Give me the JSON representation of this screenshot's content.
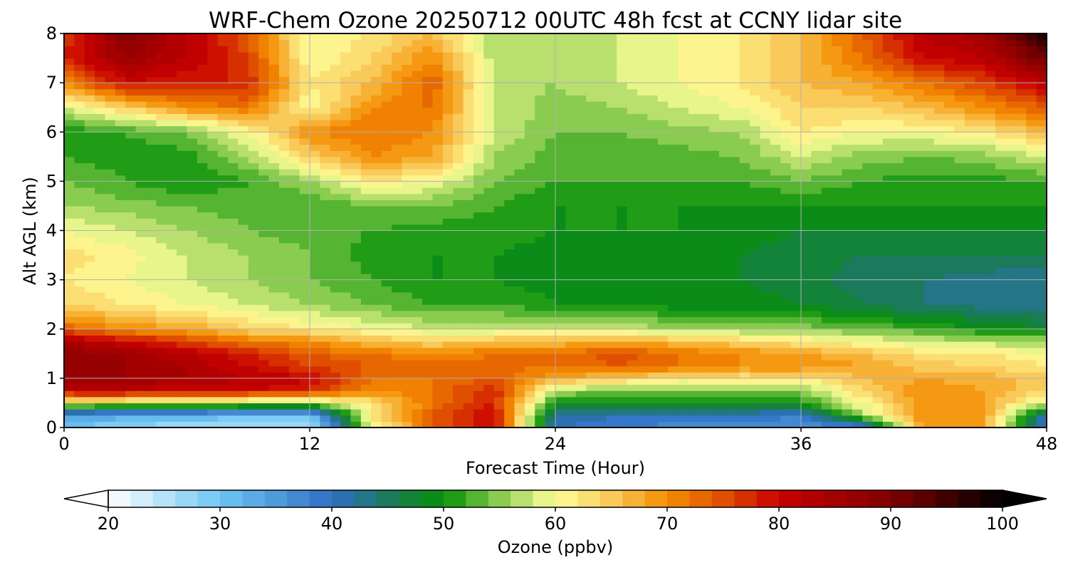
{
  "chart_data": {
    "type": "heatmap",
    "title": "WRF-Chem Ozone  20250712 00UTC 48h fcst at CCNY lidar site",
    "xlabel": "Forecast Time (Hour)",
    "ylabel": "Alt AGL (km)",
    "xlim": [
      0,
      48
    ],
    "ylim": [
      0,
      8
    ],
    "xticks": [
      "0",
      "12",
      "24",
      "36",
      "48"
    ],
    "yticks": [
      "0",
      "1",
      "2",
      "3",
      "4",
      "5",
      "6",
      "7",
      "8"
    ],
    "grid": true,
    "x_hours": [
      0,
      3,
      6,
      9,
      12,
      15,
      18,
      21,
      24,
      27,
      30,
      33,
      36,
      39,
      42,
      45,
      48
    ],
    "y_km": [
      0,
      0.25,
      0.5,
      0.75,
      1,
      1.25,
      1.5,
      1.75,
      2,
      2.5,
      3,
      3.5,
      4,
      4.5,
      5,
      5.5,
      6,
      6.5,
      7,
      7.5,
      8
    ],
    "values_ppbv": [
      [
        30,
        27,
        26,
        25,
        25,
        58,
        74,
        80,
        40,
        38,
        37,
        37,
        36,
        36,
        70,
        68,
        38
      ],
      [
        35,
        33,
        32,
        31,
        30,
        62,
        74,
        80,
        42,
        40,
        40,
        40,
        38,
        56,
        70,
        68,
        40
      ],
      [
        58,
        58,
        58,
        56,
        55,
        62,
        72,
        78,
        50,
        50,
        50,
        50,
        50,
        60,
        70,
        68,
        58
      ],
      [
        82,
        82,
        80,
        80,
        78,
        70,
        72,
        78,
        56,
        54,
        54,
        54,
        55,
        64,
        70,
        68,
        64
      ],
      [
        86,
        86,
        84,
        82,
        80,
        72,
        72,
        74,
        68,
        65,
        62,
        62,
        62,
        66,
        68,
        67,
        65
      ],
      [
        88,
        86,
        84,
        80,
        76,
        74,
        73,
        73,
        72,
        74,
        72,
        70,
        70,
        68,
        65,
        64,
        62
      ],
      [
        88,
        86,
        82,
        78,
        74,
        72,
        70,
        72,
        72,
        75,
        72,
        70,
        68,
        66,
        63,
        62,
        60
      ],
      [
        84,
        80,
        76,
        72,
        70,
        66,
        64,
        66,
        66,
        68,
        66,
        64,
        62,
        60,
        58,
        57,
        56
      ],
      [
        74,
        70,
        68,
        64,
        62,
        60,
        58,
        58,
        58,
        58,
        56,
        56,
        55,
        54,
        52,
        50,
        48
      ],
      [
        64,
        62,
        60,
        58,
        56,
        54,
        52,
        52,
        50,
        50,
        49,
        49,
        48,
        46,
        44,
        43,
        42
      ],
      [
        62,
        60,
        58,
        56,
        54,
        52,
        50,
        50,
        49,
        49,
        49,
        48,
        47,
        45,
        44,
        43,
        42
      ],
      [
        63,
        61,
        58,
        56,
        54,
        51,
        50,
        50,
        49,
        49,
        49,
        48,
        47,
        46,
        46,
        46,
        46
      ],
      [
        60,
        58,
        56,
        54,
        53,
        52,
        51,
        51,
        50,
        50,
        50,
        49,
        48,
        48,
        48,
        48,
        48
      ],
      [
        56,
        55,
        54,
        53,
        52,
        54,
        54,
        52,
        50,
        50,
        50,
        50,
        50,
        50,
        50,
        50,
        50
      ],
      [
        54,
        52,
        50,
        52,
        56,
        62,
        60,
        54,
        52,
        52,
        52,
        52,
        54,
        52,
        51,
        51,
        52
      ],
      [
        52,
        51,
        51,
        56,
        64,
        70,
        68,
        56,
        53,
        53,
        53,
        54,
        58,
        55,
        54,
        55,
        58
      ],
      [
        50,
        52,
        54,
        60,
        70,
        72,
        70,
        58,
        54,
        54,
        55,
        56,
        62,
        60,
        60,
        62,
        66
      ],
      [
        58,
        64,
        70,
        72,
        60,
        70,
        72,
        58,
        55,
        56,
        58,
        60,
        64,
        64,
        66,
        70,
        74
      ],
      [
        70,
        80,
        78,
        78,
        62,
        66,
        74,
        57,
        56,
        58,
        60,
        62,
        66,
        68,
        72,
        76,
        82
      ],
      [
        78,
        86,
        82,
        76,
        60,
        64,
        70,
        57,
        57,
        58,
        60,
        62,
        66,
        72,
        80,
        82,
        92
      ],
      [
        76,
        90,
        82,
        74,
        60,
        62,
        66,
        56,
        57,
        58,
        60,
        62,
        66,
        74,
        82,
        86,
        98
      ]
    ],
    "colorbar": {
      "label": "Ozone  (ppbv)",
      "min": 20,
      "max": 100,
      "ticks": [
        "20",
        "30",
        "40",
        "50",
        "60",
        "70",
        "80",
        "90",
        "100"
      ],
      "extend": "both"
    },
    "colormap_stops": [
      {
        "v": 20,
        "c": "#ffffff"
      },
      {
        "v": 30,
        "c": "#6ec6f4"
      },
      {
        "v": 40,
        "c": "#2f6fc4"
      },
      {
        "v": 45,
        "c": "#1c7a5c"
      },
      {
        "v": 50,
        "c": "#079007"
      },
      {
        "v": 55,
        "c": "#8acc50"
      },
      {
        "v": 60,
        "c": "#ffff9a"
      },
      {
        "v": 65,
        "c": "#f9c959"
      },
      {
        "v": 70,
        "c": "#f58d00"
      },
      {
        "v": 75,
        "c": "#e04f00"
      },
      {
        "v": 80,
        "c": "#c80000"
      },
      {
        "v": 90,
        "c": "#800000"
      },
      {
        "v": 100,
        "c": "#000000"
      }
    ]
  }
}
